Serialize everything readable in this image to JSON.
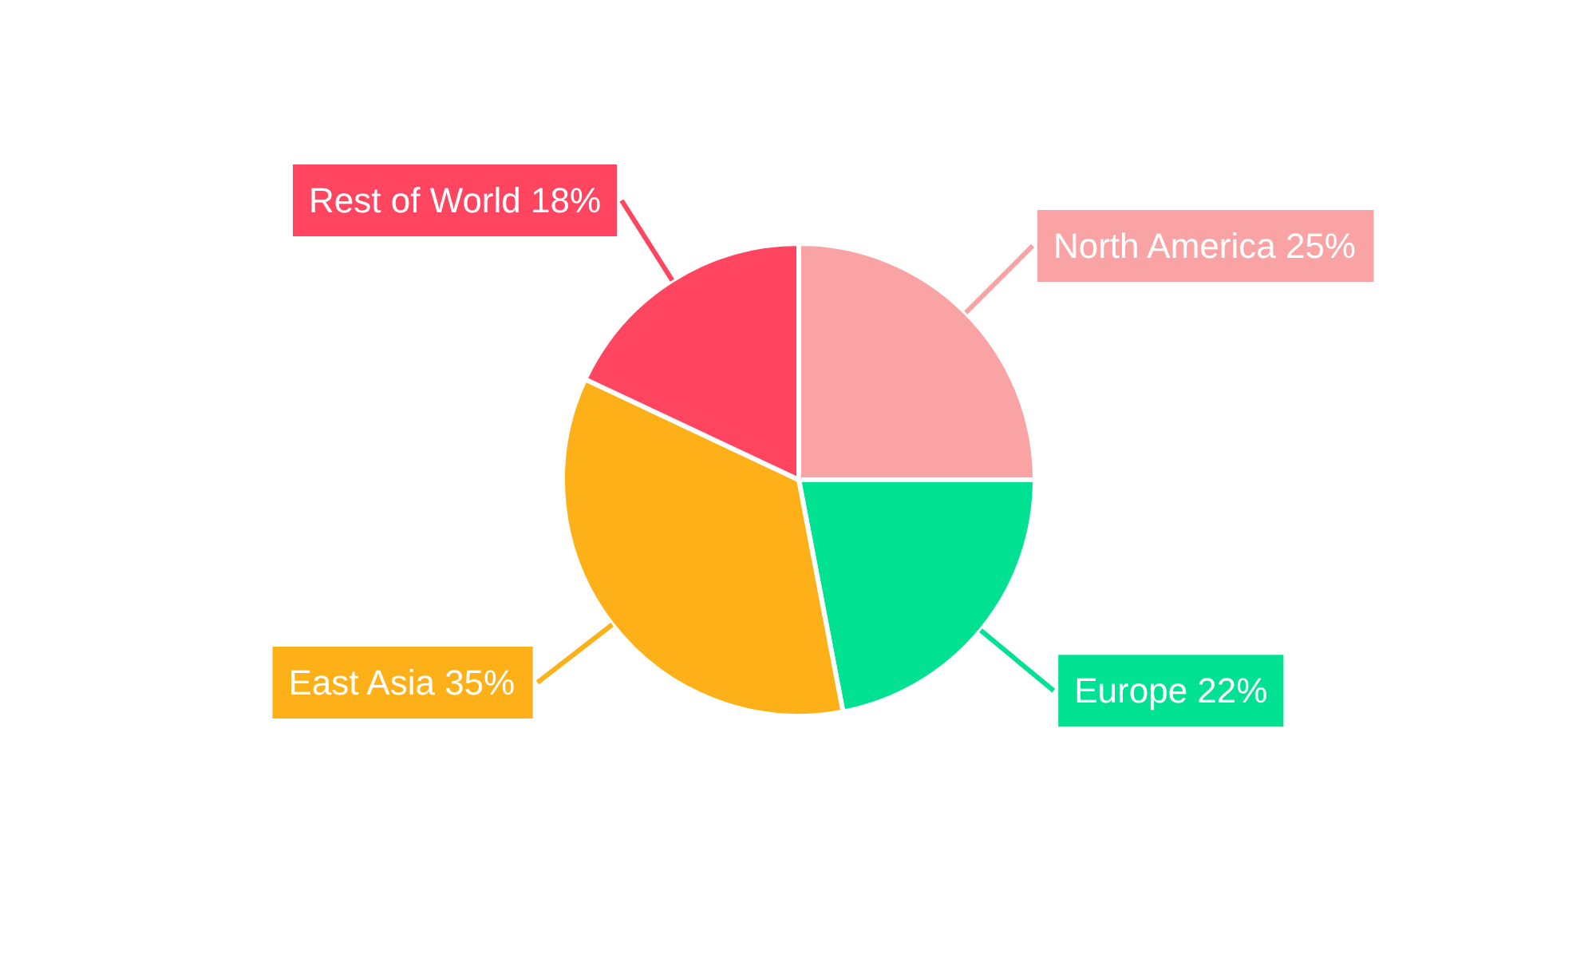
{
  "chart_data": {
    "type": "pie",
    "categories": [
      "North America",
      "Europe",
      "East Asia",
      "Rest of World"
    ],
    "values": [
      25,
      22,
      35,
      18
    ],
    "colors": [
      "#f9a3a4",
      "#00e291",
      "#feb019",
      "#ff4560"
    ],
    "value_labels": [
      "25%",
      "22%",
      "35%",
      "18%"
    ]
  }
}
